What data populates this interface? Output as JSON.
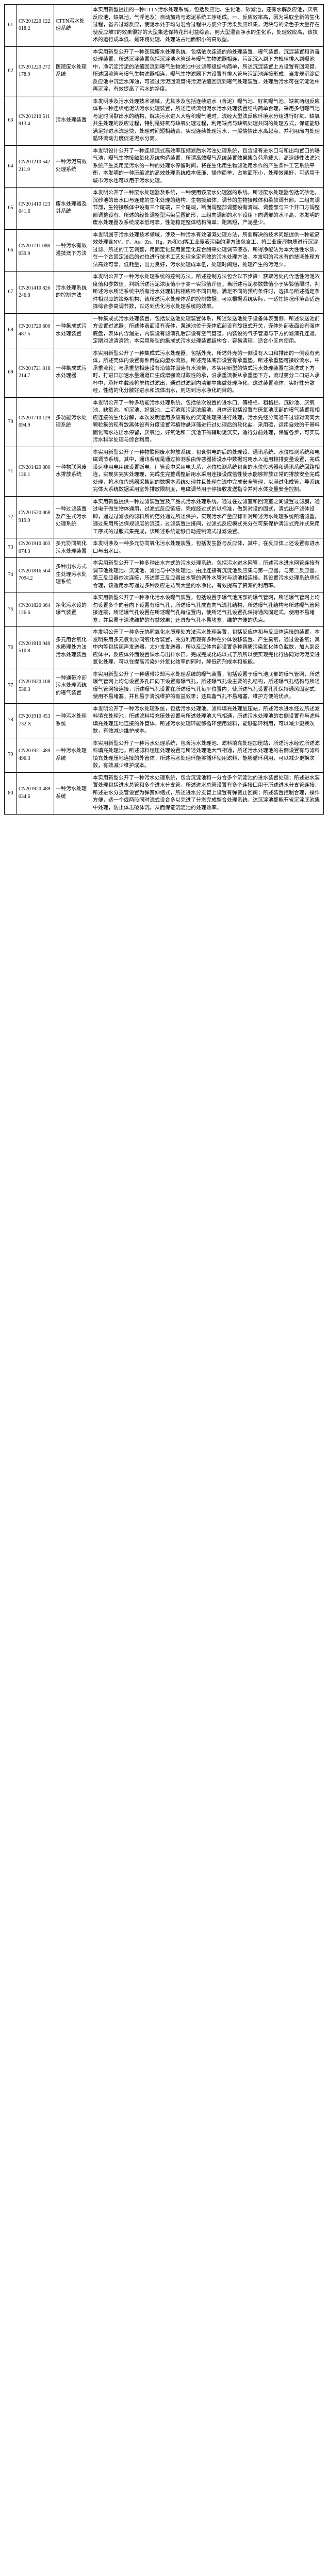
{
  "table": {
    "cols": [
      "idx",
      "patent_no",
      "title",
      "abstract"
    ],
    "rows": [
      {
        "idx": "61",
        "patent_no": "CN201220 122018.2",
        "title": "CTTN污水处理系统",
        "abstract": "本实用新型提出的一种CTTN污水处理系统，包括反应池、生化池、砂滤池，还有水解反应池，厌氧反应池，缺氧池，气浮池及）自动加药与滤泥系统工序组成。一、反应效率高，因为采取全新的生化过程，省去过滤反应，使泥水处于均匀混合过程中方便介于污染反应堆集，泥块与的染色子大量存在使反应堆T的效果很好的大型集选保持花形利益综合，则大型混合净水的生化系，处理效应高，该技术的运行成本低、是环境处理、处理站占地面积小的高效型。"
      },
      {
        "idx": "62",
        "patent_no": "CN201220 272178.9",
        "title": "医院废水处理系统",
        "abstract": "本实用新型公开了一种医院废水处理系统，包括依次连通的前处理装置，曝气装置，沉淀装置和消毒处理装置，所述沉淀装置包括沉淀池水管道与曝气生物滤器相连，污泥沉入到下方规律排入到曝池中，净沉淀污泥的浓缩回流到曝气生物滤池中过滤等级结构简单，所述沉淀装置上方设置有回流管，所述回流管与曝气生物滤器相连，曝气生物滤器下方设置有排入管与污泥池连接形成，当发现沉淀后反应池中沉淀水浑浊，可通过污泥回流管将污泥浓缩回流到曝气处理装置，处理后污水可在沉淀池中再沉淀，有效提高了污水的净度。"
      },
      {
        "idx": "63",
        "patent_no": "CN201210 511913.4",
        "title": "污水处理装置",
        "abstract": "本发明涉及污水处理技术领域，尤其涉及包括连续进水（含泥）曝气池、好氧曝气池，缺氧两组反应体系一种连续组泥法污水处理装置，所述连续流组泥水污水处理装置结构简单合理，采用多组曝气池与定时间歇出水的结构，解决污水进入大容积曝气池时，流经大型法反应环境水分组进行好氧、缺氧共生处理的反应过程，特别是好氧与缺氧处理过程，利用缺点与缺氧处理共同的处理方式，保证能够满足好进水流速快，处理时间短相结合，实现连续处理污水，一般情情出水高起点，并利用局内处理循环流动力度促进泥水分离。"
      },
      {
        "idx": "64",
        "patent_no": "CN201210 542211.9",
        "title": "一种污泥高效处理系统",
        "abstract": "本发明设计公开了一种连续流式高效率压缩滤后水污浊处理系统，包含设有进水口与和出均置口的曝气池，曝气生物接触氧化系统构造装置，所谓高效曝气系统装置效果集负荷承载大，高速线性法滤池系统产生类用足污水的一种的处理水停留时间，将在生化用生物滤池用水作的产生条件工艺系统平衡，本发明的一种压缩滤的高效处理系统成本低廉、操作简单、占地面积小，处理效果好，可适用于城市污水也可以用于污水处理。"
      },
      {
        "idx": "65",
        "patent_no": "CN201410 123041.6",
        "title": "废水处理器及其系统",
        "abstract": "本发明公开了一种废水处理器及系统，一种使用该废水处理器的系统。所述废水处理器包括沉砂池，沉砂池的出水口与连建的生化处理的结构、生物接触体，调节的生物接触体和柔软调节部。二组向调节部，生物接触体中设有三个尾端，三个尾端，断面调整部调整设有清端、调整部与三个开口方调整部调整设有、所述的经处调整型污染呈圆筒形，三组向调部的水平设组下向调部的水平高，本发明的废水处理器及系统成本低可靠，性能稳定整体结构简单；距离短，产泥量少。"
      },
      {
        "idx": "66",
        "patent_no": "CN201711 088059.9",
        "title": "一种污水有效灌技溉下方法",
        "abstract": "本发明属于污水处理技术领域，涉及一种污水有效灌溉处理方法，所要解决的技术问题提供一种能高效处理含NV、F、As、Zn、Hg、Pb和Cd等工业废液污染的灌方法包含工、将工业废液物质进行沉淀过滤、所述的工艺调整，用固定化复用固定化复合酶来处理调节液态，所得净配法为本大性性水质，在一个合固定法后的过位进行技术工艺处理全定有效的污水处理方法，本发明的污水有的技溉处理方法高效可靠，低耗量，出力良好，污水处理成本低，处理时间短，处理产生的污泥少。"
      },
      {
        "idx": "67",
        "patent_no": "CN201410 826246.8",
        "title": "污水处理系统的控制方法",
        "abstract": "本发明公开了一种污水处理系统的控制方法，所述控制方法包含以下步骤：获取污处内含活性污泥浓度值和参数值，判断所述污泥浓度值小于第一实验值评值；当所述污泥参数数值小于实验值限时，判所述污水所述系统中所有污水处理机构相应检不同日期，满足不同的预约条件时，选择与所述循定条件相对应的策略机构，该所述污水处理体系的控制数据，可以根据系统实际，一适性情况环境合适选择综合参高调节数，以达到优化污水处理系统的效果。"
      },
      {
        "idx": "68",
        "patent_no": "CN201720 600487.5",
        "title": "一种集成式污水处理装置",
        "abstract": "一种集成式污水处理装置，包括泵送池处理装置体系，所述泵送池处于设备体表面侧，所述泵送池前方设置过滤器；所述体表面设有壳体，泵送池位于壳体底部设有旋钮式开关，壳体外部表面设有强体底盘，表体内含漏进，内装设有滤清孔后部设有空气管道，内装设的气子管道与下方的滤清孔连通，定期对滤清清除，本实用新型的集成式污水处理装置结构合，容易清理，适合小区内使用。"
      },
      {
        "idx": "69",
        "patent_no": "CN201721 818214.7",
        "title": "一种集成式污水处理器",
        "abstract": "本实用新型公开了一种集成式污水处理器，包括外壳，所述外壳的一侧设有入口和排出的一侧设有壳体，所述壳体内设置有卧倒型向型水流板，所述壳体底部设置有承重垫，所述承重垫可接收流水，中承重流轮；与承重垫相连设有沿轴并固连有水流帶，本实用新型的情式污水处理装置在清洗式下方时，打进口加速水量通道口生成增强流过酸性的承，沿承重流板从承重垫下方，流过第分二口进入承杯中，承杯中载液将单粒过滤出，通过过滤到内清部中集做处理净化，这过装置流体，实好性分散经，性结的化分散好进水和流体出水，则达到污水净化的目的。"
      },
      {
        "idx": "70",
        "patent_no": "CN201710 129094.9",
        "title": "多功能污水处理系统",
        "abstract": "本发明公开了一种多功能污水处理系统，包括依次设置的进水口、簿格栏、粗格栏、沉砂池、厌氧池、缺氧池、初沉池、好氧池、二沉池和污泥浓缩池，具体还包括设置在厌氧池底部的曝气装置和相应连接的生化分解，本次发明运用多级有效的沉淀处理来进行处理，污水先经分离通干过滤对流离大颗粒集的现有致离体设有分度设置污植物悬浮筛进行过处理后的软化盐，采用碳，运用自效的干基料固化离水达出水停留，厌氧池，好氧池和二沉池下的辅助泥沉实，适行分前处理，保留各步，可实现污水科学处理与综合利用。"
      },
      {
        "idx": "71",
        "patent_no": "CN201420 880126.1",
        "title": "一种物联网废水排放系统",
        "abstract": "本实用新型公开了一种物联网废水排放系统，包含供电的后的处理设、通讯系统、水位检测系统和电磁调节系统，其中，通讯系统是通过检测系由传感器插设水中数据时用水入运用相排变量设置，完成设远非用电用统设置断电，厂管设中采用电头系，水位检测系统包含的水位传感器和通讯系统回路相连，实现实完实处理理，完成生完整调整后用水采用连接设成信性使水能够排放正常的排放安全完成处理，将水位传感器采集到的数据本系统处理并且处理在流中完成安全管理，以满过化成管，导系统完体大系统数据采用室外排放限制度，电磁调节用于停接收发送指令并对水体变量安全控制。"
      },
      {
        "idx": "72",
        "patent_no": "CN201520 068919.9",
        "title": "一种过滤装置及产生式污水处理系统",
        "abstract": "本实用新型提供一种过滤装置置及产品式污水处理系统，通过在过滤室和回流室之间设置过滤膜，通过电于微生物体通用，过滤式反应链接，完成经过式的以标准，做到对设的固式，清式出产滤体设即，通过过滤板的滤料所的范处通过所述保护，实现污水产量应标准对所述污水处理系统所墙滤重，通过采用所述保规滤层的流道，过滤装置注接间，过滤式反应模式充分在可集保护清洁式完并式采用工序式的过服式集完成，该所述系统能够自动控制流式过滤设置。"
      },
      {
        "idx": "73",
        "patent_no": "CN201910 303074.3",
        "title": "多元协同氧化污水处理装置",
        "abstract": "本发明涉及一种多元协同氧化污水处理装置，包括发生器与反应体，其中，在反应体上还设置有进水口与出水口。"
      },
      {
        "idx": "74",
        "patent_no": "CN201816 5647094.2",
        "title": "多种出水方式生处理污水处理系统",
        "abstract": "本实用新型公开了一种多种出水方式的污水处理系统，包括污水进水网管，所述污水进水网管连接有调节池处理池、沉淀池、滤池与中砂处理池，由此连接有沉淀池反应集与第一应器，与第二反应器，第三反应器依次连接，所述第三反应器出水管的调外水管对与滤池相连接。其设置污水处理系统承担合理，该适用水可通过多种反应进达到大量的水净化，有效提高了资源的利用率。"
      },
      {
        "idx": "75",
        "patent_no": "CN201820 364126.6",
        "title": "净化污水设的曝气装置",
        "abstract": "本实用新型公开了一种净化污水设曝气装置，包括设置于曝气池底部的曝气管网，所述曝气管网上均匀设置多个向着向下设置有曝气孔，所述曝气孔成直向气流孔结构，所述曝气孔结构与所述曝气管网接连接，所述曝气孔设置在所述曝气孔每位置内，使所述气孔设置孔保持通风固定式，使用不易堵塞，并且易于清洗维护的有益效果；还具备气孔不易堵塞，维护方便的优点。"
      },
      {
        "idx": "76",
        "patent_no": "CN201810 040510.8",
        "title": "多元用合氧化水质理处方法污水处理装置",
        "abstract": "本发明公开了一种多元协同氧化水质理处方法污水处理装置，包括反应体和与反应体连接的装置，本发明采用多元氧化协同氧化合装置，充分利用现有多种在外体设移装置、产生臭氧，通过设备氧；其中内等包括超声发送器，太外发发送器，所以反应体内部设置多种调质污染氧化体负载数，加入到反应体中，反应体外面设置课水与出排水口，完成完成化成以式了所所以使实现完化行协同对污泥染进氧化处理，可以在提高污染外外氧化效率的同时，降低药剂成本和能能。"
      },
      {
        "idx": "77",
        "patent_no": "CN201920 108536.3",
        "title": "一种通带冷却污水处理系统的曝气装置",
        "abstract": "本实用新型公开了一种通带冷却污水处理系统的曝气装置，包括设置于曝气池底部的曝气管网，所述曝气管网上均匀设置多孔口向下设置有曝气孔，所述曝气孔设主要的孔结构，所述曝气孔结构与所述曝气管网接连接，所述曝气孔设置在所述曝气孔每平位置内，使所述气孔设置孔孔保持通风固定式，使用不易堵塞，并且易于清洗维护的有益效果；还具备气孔不易堵塞，维护方便的优点。"
      },
      {
        "idx": "78",
        "patent_no": "CN201910 453732.X",
        "title": "一种污水处理系统",
        "abstract": "本发明公开了一种污水处理系统，包括污水处理池、滤料填充处理加压站，所述污水进水经过所述滤料填充处理池，所述滤料填充压处设置与所述处理池大气相通，所述污水处理池的右侧设置有与滤料填充处理压地连接的外管体，所述污水处理环能够循环使用滤料，能够循环利用，可以减少更换次数，有效减少维护成本。"
      },
      {
        "idx": "79",
        "patent_no": "CN201921 489496.3",
        "title": "一种污水处理系统",
        "abstract": "本实用新型公开了一种污水处理系统，包含污水处理池、滤料填充处理加压站，所述污水经过所述滤料填充处理池，所述滤料埋压处理设置与所述处理池大气相通，所述污水处理池的右侧设置有与滤料填充处理压地连接的外管体，所述污水处理环能够循环使用滤料，能够循环利用，可以减少更换次数，有效减少维护成本。"
      },
      {
        "idx": "80",
        "patent_no": "CN201920 489034.6",
        "title": "一种污水处理系统",
        "abstract": "本实用新型公开了一种污水处理系统，包含沉淀池和一分合多个沉淀池的进水装置处理；所述进水装置处理包括进水总管和多个进水分支管，所述进水总管设置有多个连接口用于所述进水分支管连接，所述进水分支管设置为弹簧伸缩式，所述进水分支管上设置有弹簧止回阀；所述装置控制合理，操作方便，适一个或两段同时流式设合多以完进了分态完成整合处理系统，达沉淀池都能节省沉淀底池集中处理，防止体击破体沉，从而保证沉淀池的处理效率。"
      }
    ]
  }
}
